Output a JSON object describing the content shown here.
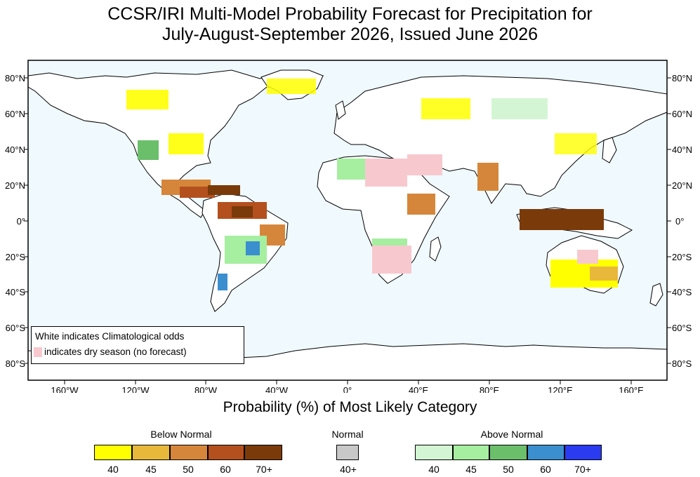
{
  "title": {
    "line1": "CCSR/IRI Multi-Model Probability Forecast for Precipitation for",
    "line2": "July-August-September 2026, Issued June 2026"
  },
  "map": {
    "ocean_color": "#f0f9fe",
    "land_color": "#ffffff",
    "coast_color": "#000000",
    "lon_range": [
      -180,
      180
    ],
    "lat_range": [
      -90,
      90
    ],
    "lat_ticks_left": [
      "80°N",
      "60°N",
      "40°N",
      "20°N",
      "0°",
      "20°S",
      "40°S",
      "60°S",
      "80°S"
    ],
    "lat_ticks_right": [
      "80°N",
      "60°N",
      "40°N",
      "20°N",
      "0°",
      "20°S",
      "40°S",
      "60°S",
      "80°S"
    ],
    "lat_tick_values": [
      80,
      60,
      40,
      20,
      0,
      -20,
      -40,
      -60,
      -80
    ],
    "lon_ticks": [
      "160°W",
      "120°W",
      "80°W",
      "40°W",
      "0°",
      "40°E",
      "80°E",
      "120°E",
      "160°E"
    ],
    "lon_tick_values": [
      -160,
      -120,
      -80,
      -40,
      0,
      40,
      80,
      120,
      160
    ]
  },
  "note": {
    "line1": "White indicates Climatological odds",
    "line2": "indicates dry season (no forecast)",
    "dry_color": "#f7c9cf"
  },
  "colorbar": {
    "title": "Probability (%) of Most Likely Category",
    "below": {
      "label": "Below Normal",
      "values": [
        "40",
        "45",
        "50",
        "60",
        "70+"
      ],
      "colors": [
        "#ffff00",
        "#e8b83a",
        "#d6863a",
        "#b4501e",
        "#7a3a0a"
      ]
    },
    "normal": {
      "label": "Normal",
      "values": [
        "40+"
      ],
      "colors": [
        "#c8c8c8"
      ]
    },
    "above": {
      "label": "Above Normal",
      "values": [
        "40",
        "45",
        "50",
        "60",
        "70+"
      ],
      "colors": [
        "#d3f5d3",
        "#a6eea0",
        "#6bbf6b",
        "#3b8fcf",
        "#2b3cf0"
      ]
    }
  }
}
